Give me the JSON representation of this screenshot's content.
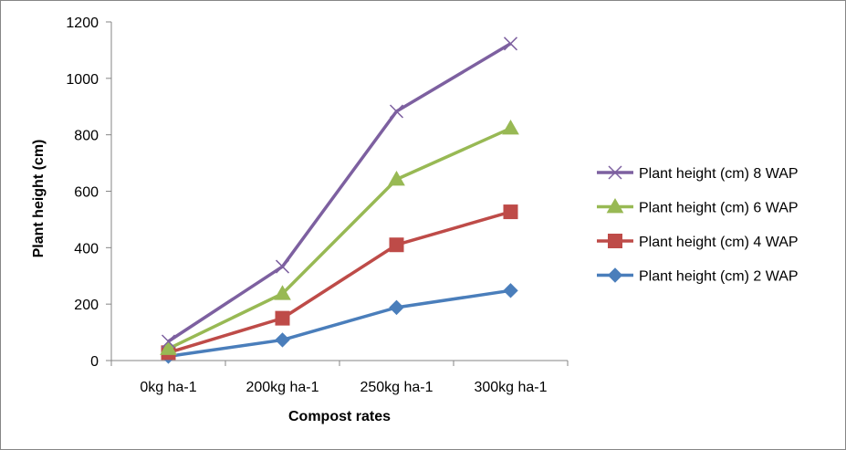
{
  "chart_data": {
    "type": "line",
    "title": "",
    "xlabel": "Compost rates",
    "ylabel": "Plant height (cm)",
    "categories": [
      "0kg ha-1",
      "200kg ha-1",
      "250kg ha-1",
      "300kg ha-1"
    ],
    "ylim": [
      0,
      1200
    ],
    "yticks": [
      0,
      200,
      400,
      600,
      800,
      1000,
      1200
    ],
    "grid": false,
    "legend_position": "right",
    "series": [
      {
        "name": "Plant height (cm) 2 WAP",
        "values": [
          15,
          73,
          188,
          248
        ],
        "color": "#4a7ebb",
        "marker": "diamond"
      },
      {
        "name": "Plant height (cm) 4 WAP",
        "values": [
          28,
          150,
          410,
          527
        ],
        "color": "#be4b48",
        "marker": "square"
      },
      {
        "name": "Plant height (cm) 6 WAP",
        "values": [
          42,
          237,
          642,
          823
        ],
        "color": "#98b954",
        "marker": "triangle"
      },
      {
        "name": "Plant height (cm) 8 WAP",
        "values": [
          68,
          333,
          883,
          1123
        ],
        "color": "#7d60a0",
        "marker": "x"
      }
    ],
    "legend_order": [
      3,
      2,
      1,
      0
    ]
  }
}
